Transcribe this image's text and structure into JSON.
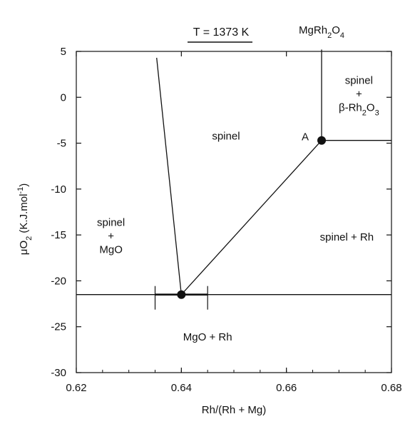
{
  "chart_data": {
    "type": "phase-diagram",
    "title": "T = 1373 K",
    "xlabel": "Rh/(Rh + Mg)",
    "ylabel": "μO2 (K.J.mol-1)",
    "xlim": [
      0.62,
      0.68
    ],
    "ylim": [
      -30,
      5
    ],
    "xticks": [
      0.62,
      0.64,
      0.66,
      0.68
    ],
    "xtick_labels": [
      "0.62",
      "0.64",
      "0.66",
      "0.68"
    ],
    "yticks": [
      5,
      0,
      -5,
      -10,
      -15,
      -20,
      -25,
      -30
    ],
    "ytick_labels": [
      "5",
      "0",
      "-5",
      "-10",
      "-15",
      "-20",
      "-25",
      "-30"
    ],
    "grid": false,
    "boundaries": [
      {
        "name": "spinel-left-boundary",
        "points": [
          [
            0.6353,
            4.3
          ],
          [
            0.64,
            -21.5
          ]
        ]
      },
      {
        "name": "spinel-rh-boundary",
        "points": [
          [
            0.64,
            -21.5
          ],
          [
            0.6667,
            -4.7
          ]
        ]
      },
      {
        "name": "mgrh2o4-line",
        "points": [
          [
            0.6667,
            5.2
          ],
          [
            0.6667,
            -4.7
          ]
        ]
      },
      {
        "name": "spinel-b-rh2o3-boundary",
        "points": [
          [
            0.6667,
            -4.7
          ],
          [
            0.68,
            -4.7
          ]
        ]
      },
      {
        "name": "mgo-rh-boundary",
        "points": [
          [
            0.62,
            -21.5
          ],
          [
            0.68,
            -21.5
          ]
        ]
      }
    ],
    "points": [
      {
        "name": "triple-point-mgo",
        "x": 0.64,
        "y": -21.5,
        "error_x": [
          0.635,
          0.645
        ]
      },
      {
        "name": "point-a",
        "x": 0.6667,
        "y": -4.7,
        "label": "A"
      }
    ],
    "regions": [
      {
        "name": "spinel",
        "lines": [
          "spinel"
        ],
        "x": 0.6485,
        "y": -4.6
      },
      {
        "name": "spinel-mgo",
        "lines": [
          "spinel",
          "+",
          "MgO"
        ],
        "x": 0.6266,
        "y": -15.5
      },
      {
        "name": "spinel-rh",
        "lines": [
          "spinel  +  Rh"
        ],
        "x": 0.6715,
        "y": -15.6
      },
      {
        "name": "mgo-rh",
        "lines": [
          "MgO + Rh"
        ],
        "x": 0.645,
        "y": -26.5
      },
      {
        "name": "spinel-b-rh2o3",
        "lines": [
          "spinel",
          "+",
          "β-Rh2O3"
        ],
        "x": 0.6738,
        "y": 0
      }
    ],
    "compound_label": {
      "text": "MgRh2O4",
      "x": 0.6667
    }
  }
}
